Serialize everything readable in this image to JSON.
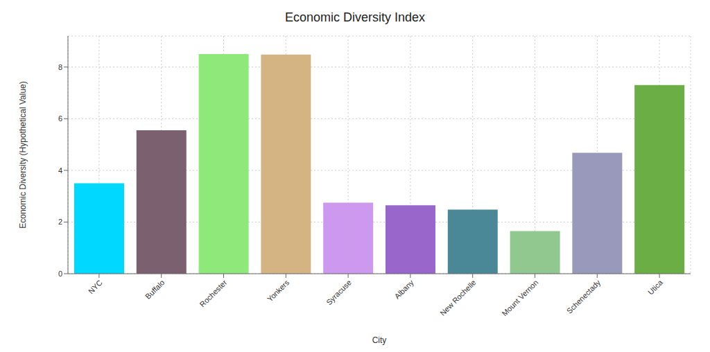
{
  "chart_data": {
    "type": "bar",
    "title": "Economic Diversity Index",
    "xlabel": "City",
    "ylabel": "Economic Diversity (Hypothetical Value)",
    "categories": [
      "NYC",
      "Buffalo",
      "Rochester",
      "Yonkers",
      "Syracuse",
      "Albany",
      "New Rochelle",
      "Mount Vernon",
      "Schenectady",
      "Utica"
    ],
    "values": [
      3.5,
      5.55,
      8.5,
      8.48,
      2.75,
      2.65,
      2.48,
      1.65,
      4.68,
      7.3
    ],
    "colors": [
      "#00D8FF",
      "#7B6070",
      "#8EE87A",
      "#D4B483",
      "#CC99EE",
      "#9966CC",
      "#4A8898",
      "#90C890",
      "#9999BB",
      "#6AAE45"
    ],
    "ylim": [
      0,
      9.2
    ],
    "yticks": [
      0,
      2,
      4,
      6,
      8
    ],
    "grid": true
  }
}
